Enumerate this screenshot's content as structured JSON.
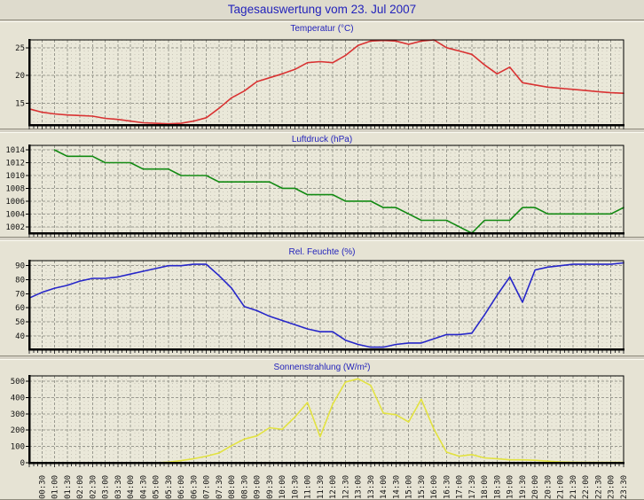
{
  "page": {
    "title": "Tagesauswertung vom 23. Jul 2007"
  },
  "x_axis": {
    "tick_interval_minutes": 30,
    "minor_tick_minutes": 10,
    "range": [
      "00:00",
      "23:30"
    ],
    "tick_labels": [
      "00:30",
      "01:00",
      "01:30",
      "02:00",
      "02:30",
      "03:00",
      "03:30",
      "04:00",
      "04:30",
      "05:00",
      "05:30",
      "06:00",
      "06:30",
      "07:00",
      "07:30",
      "08:00",
      "08:30",
      "09:00",
      "09:30",
      "10:00",
      "10:30",
      "11:00",
      "11:30",
      "12:00",
      "12:30",
      "13:00",
      "13:30",
      "14:00",
      "14:30",
      "15:00",
      "15:30",
      "16:00",
      "16:30",
      "17:00",
      "17:30",
      "18:00",
      "18:30",
      "19:00",
      "19:30",
      "20:00",
      "20:30",
      "21:00",
      "21:30",
      "22:00",
      "22:30",
      "23:00",
      "23:30"
    ]
  },
  "chart_data": [
    {
      "type": "line",
      "id": "temperatur",
      "title": "Temperatur (°C)",
      "line_color": "#d93232",
      "grid": true,
      "yticks": [
        15,
        20,
        25
      ],
      "ylim": [
        11.1,
        26.4
      ],
      "x_start": "00:00",
      "x_step_minutes": 30,
      "values": [
        14.0,
        13.4,
        13.1,
        12.9,
        12.8,
        12.7,
        12.3,
        12.1,
        11.8,
        11.5,
        11.4,
        11.3,
        11.4,
        11.8,
        12.4,
        14.1,
        16.0,
        17.2,
        18.9,
        19.6,
        20.3,
        21.1,
        22.3,
        22.5,
        22.3,
        23.6,
        25.4,
        26.2,
        26.3,
        26.2,
        25.6,
        26.2,
        26.4,
        25.0,
        24.4,
        23.8,
        21.9,
        20.3,
        21.5,
        18.7,
        18.3,
        17.9,
        17.7,
        17.5,
        17.3,
        17.1,
        16.9,
        16.8
      ]
    },
    {
      "type": "line",
      "id": "luftdruck",
      "title": "Luftdruck (hPa)",
      "line_color": "#128a12",
      "grid": true,
      "yticks": [
        1002,
        1004,
        1006,
        1008,
        1010,
        1012,
        1014
      ],
      "ylim": [
        1001.0,
        1014.7
      ],
      "x_start": "00:00",
      "x_step_minutes": 30,
      "values": [
        null,
        null,
        1014,
        1013,
        1013,
        1013,
        1012,
        1012,
        1012,
        1011,
        1011,
        1011,
        1010,
        1010,
        1010,
        1009,
        1009,
        1009,
        1009,
        1009,
        1008,
        1008,
        1007,
        1007,
        1007,
        1006,
        1006,
        1006,
        1005,
        1005,
        1004,
        1003,
        1003,
        1003,
        1002,
        1001,
        1003,
        1003,
        1003,
        1005,
        1005,
        1004,
        1004,
        1004,
        1004,
        1004,
        1004,
        1005
      ]
    },
    {
      "type": "line",
      "id": "feuchte",
      "title": "Rel. Feuchte (%)",
      "line_color": "#2626c9",
      "grid": true,
      "yticks": [
        40,
        50,
        60,
        70,
        80,
        90
      ],
      "ylim": [
        30.5,
        93.6
      ],
      "x_start": "00:00",
      "x_step_minutes": 30,
      "values": [
        67,
        71,
        74,
        76,
        79,
        81,
        81,
        82,
        84,
        86,
        88,
        90,
        90,
        91,
        91,
        83,
        74,
        61,
        58,
        54,
        51,
        48,
        45,
        43,
        43,
        37,
        34,
        32,
        32,
        34,
        35,
        35,
        38,
        41,
        41,
        42,
        55,
        69,
        82,
        64,
        87,
        89,
        90,
        91,
        91,
        91,
        91,
        92
      ]
    },
    {
      "type": "line",
      "id": "sonnenstrahlung",
      "title": "Sonnenstrahlung (W/m²)",
      "line_color": "#e2e240",
      "grid": true,
      "yticks": [
        0,
        100,
        200,
        300,
        400,
        500
      ],
      "ylim": [
        0,
        533
      ],
      "x_start": "00:00",
      "x_step_minutes": 30,
      "values": [
        0,
        0,
        0,
        0,
        0,
        0,
        0,
        0,
        0,
        0,
        0,
        4,
        13,
        25,
        40,
        60,
        105,
        145,
        165,
        215,
        205,
        280,
        370,
        160,
        360,
        495,
        515,
        475,
        305,
        295,
        250,
        390,
        205,
        65,
        40,
        50,
        30,
        25,
        18,
        18,
        15,
        10,
        5,
        3,
        2,
        2,
        2,
        2
      ]
    }
  ],
  "colors": {
    "title_blue": "#2323bb",
    "panel_bg": "#e6e3d4",
    "plot_bg": "#eae8d9",
    "page_bg": "#d6d2c6",
    "grid": "#9a9a90",
    "axis": "#000000"
  }
}
